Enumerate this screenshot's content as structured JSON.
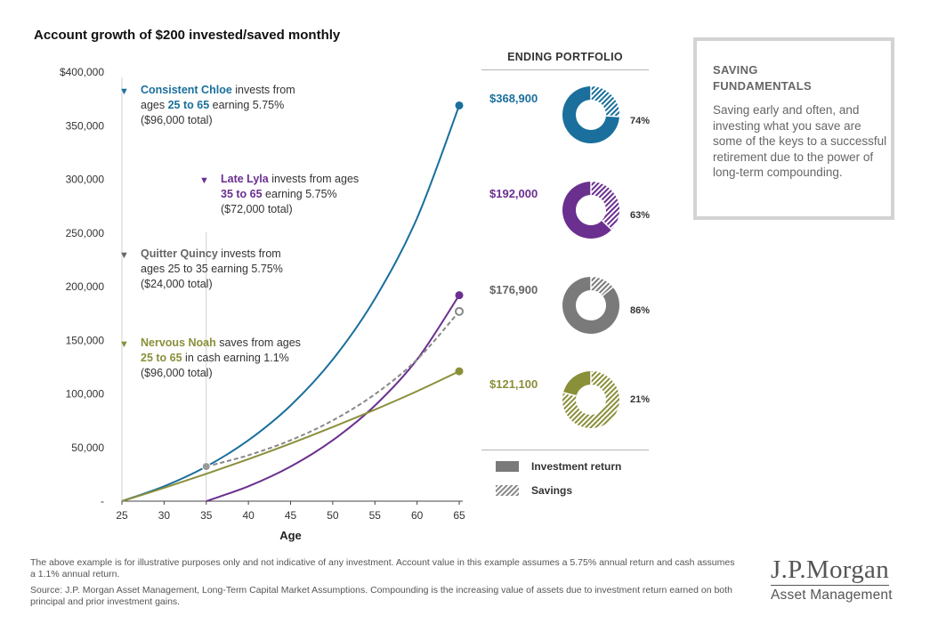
{
  "title": "Account growth of $200 invested/saved monthly",
  "colors": {
    "chloe": "#1a6f9c",
    "lyla": "#6a2f8f",
    "quincy": "#7a7a7a",
    "noah": "#8a8f3a"
  },
  "callouts": {
    "chloe": {
      "name": "Consistent Chloe",
      "t1": " invests from",
      "t2": "ages ",
      "hl": "25 to 65",
      "t3": " earning 5.75%",
      "t4": "($96,000 total)"
    },
    "lyla": {
      "name": "Late Lyla",
      "t1": " invests from ages",
      "hl": "35 to 65",
      "t3": " earning 5.75%",
      "t4": "($72,000 total)"
    },
    "quincy": {
      "name": "Quitter Quincy",
      "t1": " invests from",
      "t2": "ages 25 to 35 earning 5.75%",
      "t4": "($24,000 total)"
    },
    "noah": {
      "name": "Nervous Noah",
      "t1": " saves from ages",
      "hl": "25 to 65",
      "t3": " in cash earning 1.1%",
      "t4": "($96,000 total)"
    }
  },
  "chart_data": {
    "type": "line",
    "xlabel": "Age",
    "ylabel": "",
    "xlim": [
      25,
      65
    ],
    "ylim": [
      0,
      400000
    ],
    "x_ticks": [
      "25",
      "30",
      "35",
      "40",
      "45",
      "50",
      "55",
      "60",
      "65"
    ],
    "y_ticks": [
      "-",
      "50,000",
      "100,000",
      "150,000",
      "200,000",
      "250,000",
      "300,000",
      "350,000",
      "$400,000"
    ],
    "series": [
      {
        "name": "Consistent Chloe",
        "key": "chloe",
        "x": [
          25,
          30,
          35,
          40,
          45,
          50,
          55,
          60,
          65
        ],
        "values": [
          0,
          13900,
          32300,
          56800,
          89100,
          132000,
          188700,
          263800,
          368900
        ]
      },
      {
        "name": "Late Lyla",
        "key": "lyla",
        "x": [
          35,
          40,
          45,
          50,
          55,
          60,
          65
        ],
        "values": [
          0,
          13900,
          32300,
          56800,
          89100,
          132000,
          192000
        ]
      },
      {
        "name": "Quitter Quincy",
        "key": "quincy",
        "x": [
          35,
          40,
          45,
          50,
          55,
          60,
          65
        ],
        "values": [
          32300,
          42800,
          56800,
          75300,
          99700,
          132000,
          176900
        ]
      },
      {
        "name": "Nervous Noah",
        "key": "noah",
        "x": [
          25,
          30,
          35,
          40,
          45,
          50,
          55,
          60,
          65
        ],
        "values": [
          0,
          12400,
          25500,
          39200,
          53700,
          69100,
          85300,
          102500,
          121100
        ]
      }
    ]
  },
  "ending_portfolio": {
    "title": "ENDING PORTFOLIO",
    "items": [
      {
        "key": "chloe",
        "value": "$368,900",
        "pct": "74%",
        "return_share": 0.74
      },
      {
        "key": "lyla",
        "value": "$192,000",
        "pct": "63%",
        "return_share": 0.63
      },
      {
        "key": "quincy",
        "value": "$176,900",
        "pct": "86%",
        "return_share": 0.86
      },
      {
        "key": "noah",
        "value": "$121,100",
        "pct": "21%",
        "return_share": 0.21
      }
    ],
    "legend": {
      "investment": "Investment return",
      "savings": "Savings"
    }
  },
  "sidebar": {
    "title1": "SAVING",
    "title2": "FUNDAMENTALS",
    "text": "Saving early and often, and investing what you save are some of the keys to a successful retirement due to the power of long-term compounding."
  },
  "footnotes": {
    "line1": "The above example is for illustrative purposes only and not indicative of any investment. Account value in this example assumes a 5.75% annual return and cash assumes a 1.1% annual return.",
    "line2": "Source: J.P. Morgan Asset Management, Long-Term Capital Market Assumptions. Compounding is the increasing value of assets due to investment return earned on both principal and prior investment gains."
  },
  "logo": {
    "top": "J.P.Morgan",
    "bottom": "Asset Management"
  }
}
